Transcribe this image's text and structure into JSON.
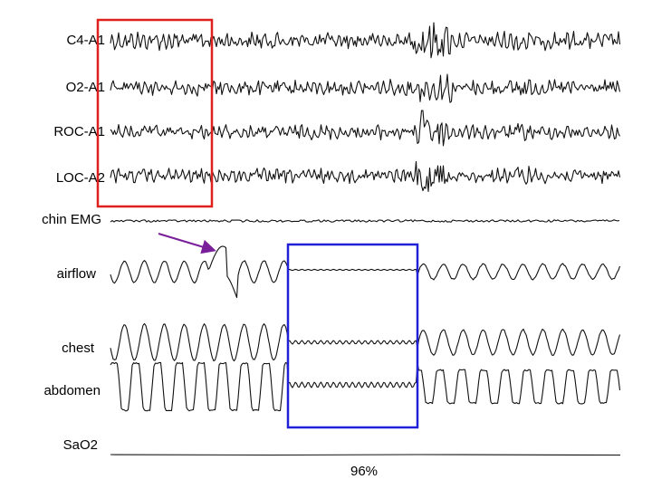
{
  "channels": [
    {
      "label": "C4-A1"
    },
    {
      "label": "O2-A1"
    },
    {
      "label": "ROC-A1"
    },
    {
      "label": "LOC-A2"
    },
    {
      "label": "chin EMG"
    },
    {
      "label": "airflow"
    },
    {
      "label": "chest"
    },
    {
      "label": "abdomen"
    },
    {
      "label": "SaO2"
    }
  ],
  "saturation": "96%"
}
